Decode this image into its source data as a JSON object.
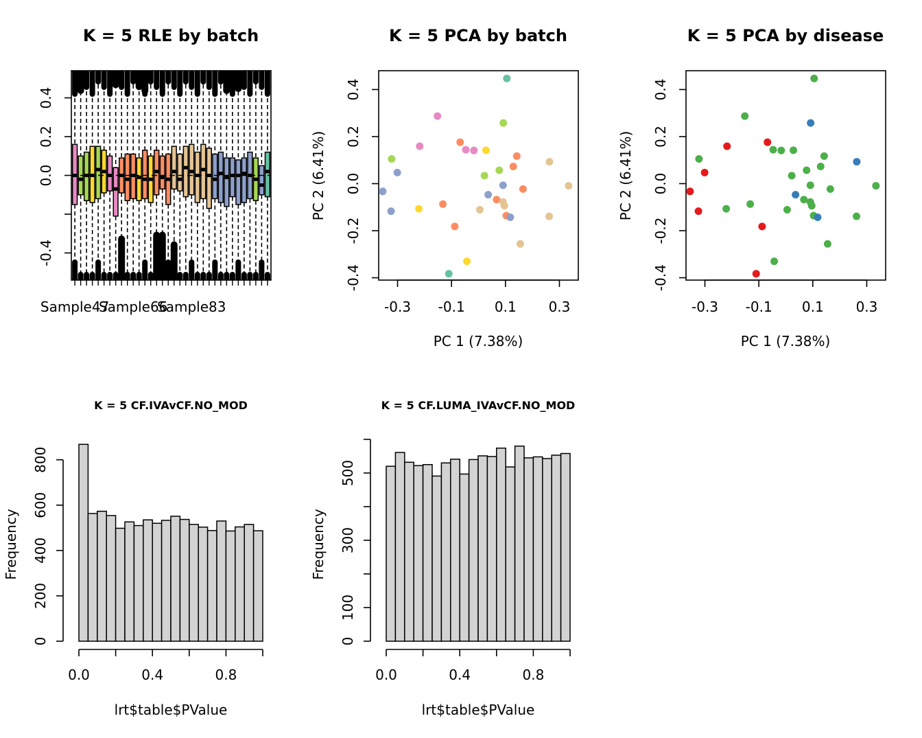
{
  "colors": {
    "batch_palette": [
      "#E78AC3",
      "#A6D854",
      "#FFD92F",
      "#FC8D62",
      "#E5C494",
      "#8DA0CB",
      "#66C2A5"
    ],
    "disease_red": "#E41A1C",
    "disease_green": "#4DAF4A",
    "disease_blue": "#377EB8",
    "hist_fill": "#D3D3D3"
  },
  "chart_data": [
    {
      "type": "boxplot",
      "title": "K = 5 RLE by batch",
      "xlabel": "",
      "ylabel": "",
      "ylim": [
        -0.54,
        0.54
      ],
      "yticks": [
        -0.4,
        -0.2,
        0.0,
        0.2,
        0.4
      ],
      "ytick_labels": [
        "-0.4",
        "",
        "0.0",
        "0.2",
        "0.4"
      ],
      "xtick_labels": [
        "Sample47",
        "Sample66",
        "Sample83"
      ],
      "xtick_positions": [
        1,
        11,
        21
      ],
      "zero_line": true,
      "boxes": [
        {
          "batch": 0,
          "median": 0.0,
          "q1": -0.15,
          "q3": 0.16
        },
        {
          "batch": 1,
          "median": -0.02,
          "q1": -0.1,
          "q3": 0.1
        },
        {
          "batch": 1,
          "median": 0.0,
          "q1": -0.13,
          "q3": 0.12
        },
        {
          "batch": 2,
          "median": 0.0,
          "q1": -0.14,
          "q3": 0.15
        },
        {
          "batch": 1,
          "median": 0.03,
          "q1": -0.12,
          "q3": 0.15
        },
        {
          "batch": 2,
          "median": 0.02,
          "q1": -0.09,
          "q3": 0.13
        },
        {
          "batch": 0,
          "median": 0.0,
          "q1": -0.08,
          "q3": 0.1
        },
        {
          "batch": 0,
          "median": -0.07,
          "q1": -0.21,
          "q3": 0.04
        },
        {
          "batch": 3,
          "median": 0.0,
          "q1": -0.09,
          "q3": 0.09
        },
        {
          "batch": 3,
          "median": -0.02,
          "q1": -0.13,
          "q3": 0.11
        },
        {
          "batch": 3,
          "median": 0.0,
          "q1": -0.12,
          "q3": 0.11
        },
        {
          "batch": 2,
          "median": -0.01,
          "q1": -0.13,
          "q3": 0.09
        },
        {
          "batch": 3,
          "median": -0.02,
          "q1": -0.12,
          "q3": 0.13
        },
        {
          "batch": 2,
          "median": -0.02,
          "q1": -0.14,
          "q3": 0.1
        },
        {
          "batch": 3,
          "median": 0.02,
          "q1": -0.1,
          "q3": 0.13
        },
        {
          "batch": 3,
          "median": -0.01,
          "q1": -0.07,
          "q3": 0.1
        },
        {
          "batch": 3,
          "median": -0.02,
          "q1": -0.15,
          "q3": 0.11
        },
        {
          "batch": 4,
          "median": 0.02,
          "q1": -0.07,
          "q3": 0.15
        },
        {
          "batch": 4,
          "median": -0.02,
          "q1": -0.08,
          "q3": 0.11
        },
        {
          "batch": 4,
          "median": 0.04,
          "q1": -0.11,
          "q3": 0.15
        },
        {
          "batch": 4,
          "median": 0.02,
          "q1": -0.1,
          "q3": 0.16
        },
        {
          "batch": 4,
          "median": 0.0,
          "q1": -0.14,
          "q3": 0.12
        },
        {
          "batch": 4,
          "median": 0.03,
          "q1": -0.12,
          "q3": 0.16
        },
        {
          "batch": 4,
          "median": 0.0,
          "q1": -0.17,
          "q3": 0.14
        },
        {
          "batch": 5,
          "median": -0.02,
          "q1": -0.12,
          "q3": 0.11
        },
        {
          "batch": 5,
          "median": 0.01,
          "q1": -0.14,
          "q3": 0.12
        },
        {
          "batch": 5,
          "median": -0.01,
          "q1": -0.16,
          "q3": 0.09
        },
        {
          "batch": 5,
          "median": 0.0,
          "q1": -0.11,
          "q3": 0.09
        },
        {
          "batch": 5,
          "median": 0.0,
          "q1": -0.15,
          "q3": 0.08
        },
        {
          "batch": 5,
          "median": 0.01,
          "q1": -0.14,
          "q3": 0.09
        },
        {
          "batch": 5,
          "median": 0.0,
          "q1": -0.12,
          "q3": 0.12
        },
        {
          "batch": 1,
          "median": -0.02,
          "q1": -0.13,
          "q3": 0.09
        },
        {
          "batch": 5,
          "median": -0.05,
          "q1": -0.1,
          "q3": 0.05
        },
        {
          "batch": 6,
          "median": 0.02,
          "q1": -0.11,
          "q3": 0.12
        }
      ]
    },
    {
      "type": "scatter",
      "title": "K = 5 PCA by batch",
      "xlabel": "PC 1 (7.38%)",
      "ylabel": "PC 2 (6.41%)",
      "xlim": [
        -0.37,
        0.37
      ],
      "ylim": [
        -0.41,
        0.48
      ],
      "xticks": [
        -0.3,
        -0.1,
        0.1,
        0.3
      ],
      "xtick_labels": [
        "-0.3",
        "-0.1",
        "0.1",
        "0.3"
      ],
      "yticks": [
        -0.4,
        -0.2,
        0.0,
        0.2,
        0.4
      ],
      "ytick_labels": [
        "-0.4",
        "-0.2",
        "0.0",
        "0.2",
        "0.4"
      ],
      "points": [
        {
          "x": 0.105,
          "y": 0.447,
          "batch": 6
        },
        {
          "x": 0.092,
          "y": 0.258,
          "batch": 1
        },
        {
          "x": -0.152,
          "y": 0.287,
          "batch": 0
        },
        {
          "x": -0.068,
          "y": 0.176,
          "batch": 3
        },
        {
          "x": -0.047,
          "y": 0.144,
          "batch": 0
        },
        {
          "x": -0.017,
          "y": 0.141,
          "batch": 0
        },
        {
          "x": 0.028,
          "y": 0.142,
          "batch": 2
        },
        {
          "x": -0.218,
          "y": 0.159,
          "batch": 0
        },
        {
          "x": -0.322,
          "y": 0.105,
          "batch": 1
        },
        {
          "x": 0.142,
          "y": 0.117,
          "batch": 3
        },
        {
          "x": 0.263,
          "y": 0.093,
          "batch": 4
        },
        {
          "x": 0.129,
          "y": 0.073,
          "batch": 3
        },
        {
          "x": 0.077,
          "y": 0.057,
          "batch": 1
        },
        {
          "x": -0.301,
          "y": 0.047,
          "batch": 5
        },
        {
          "x": 0.022,
          "y": 0.034,
          "batch": 1
        },
        {
          "x": 0.091,
          "y": -0.007,
          "batch": 5
        },
        {
          "x": 0.165,
          "y": -0.023,
          "batch": 3
        },
        {
          "x": 0.334,
          "y": -0.009,
          "batch": 4
        },
        {
          "x": -0.355,
          "y": -0.033,
          "batch": 5
        },
        {
          "x": 0.036,
          "y": -0.047,
          "batch": 5
        },
        {
          "x": 0.067,
          "y": -0.068,
          "batch": 3
        },
        {
          "x": -0.132,
          "y": -0.087,
          "batch": 3
        },
        {
          "x": 0.091,
          "y": -0.078,
          "batch": 4
        },
        {
          "x": 0.096,
          "y": -0.094,
          "batch": 4
        },
        {
          "x": -0.221,
          "y": -0.107,
          "batch": 2
        },
        {
          "x": 0.005,
          "y": -0.111,
          "batch": 4
        },
        {
          "x": -0.324,
          "y": -0.117,
          "batch": 5
        },
        {
          "x": 0.103,
          "y": -0.136,
          "batch": 3
        },
        {
          "x": 0.118,
          "y": -0.143,
          "batch": 5
        },
        {
          "x": 0.262,
          "y": -0.139,
          "batch": 4
        },
        {
          "x": -0.088,
          "y": -0.182,
          "batch": 3
        },
        {
          "x": 0.155,
          "y": -0.256,
          "batch": 4
        },
        {
          "x": -0.043,
          "y": -0.33,
          "batch": 2
        },
        {
          "x": -0.11,
          "y": -0.383,
          "batch": 6
        }
      ]
    },
    {
      "type": "scatter",
      "title": "K = 5 PCA by disease",
      "xlabel": "PC 1 (7.38%)",
      "ylabel": "PC 2 (6.41%)",
      "xlim": [
        -0.37,
        0.37
      ],
      "ylim": [
        -0.41,
        0.48
      ],
      "xticks": [
        -0.3,
        -0.1,
        0.1,
        0.3
      ],
      "xtick_labels": [
        "-0.3",
        "-0.1",
        "0.1",
        "0.3"
      ],
      "yticks": [
        -0.4,
        -0.2,
        0.0,
        0.2,
        0.4
      ],
      "ytick_labels": [
        "-0.4",
        "-0.2",
        "0.0",
        "0.2",
        "0.4"
      ],
      "points": [
        {
          "x": 0.105,
          "y": 0.447,
          "group": "green"
        },
        {
          "x": 0.092,
          "y": 0.258,
          "group": "blue"
        },
        {
          "x": -0.152,
          "y": 0.287,
          "group": "green"
        },
        {
          "x": -0.068,
          "y": 0.176,
          "group": "red"
        },
        {
          "x": -0.047,
          "y": 0.144,
          "group": "green"
        },
        {
          "x": -0.017,
          "y": 0.141,
          "group": "green"
        },
        {
          "x": 0.028,
          "y": 0.142,
          "group": "green"
        },
        {
          "x": -0.218,
          "y": 0.159,
          "group": "red"
        },
        {
          "x": -0.322,
          "y": 0.105,
          "group": "green"
        },
        {
          "x": 0.142,
          "y": 0.117,
          "group": "green"
        },
        {
          "x": 0.263,
          "y": 0.093,
          "group": "blue"
        },
        {
          "x": 0.129,
          "y": 0.073,
          "group": "green"
        },
        {
          "x": 0.077,
          "y": 0.057,
          "group": "green"
        },
        {
          "x": -0.301,
          "y": 0.047,
          "group": "red"
        },
        {
          "x": 0.022,
          "y": 0.034,
          "group": "green"
        },
        {
          "x": 0.091,
          "y": -0.007,
          "group": "green"
        },
        {
          "x": 0.165,
          "y": -0.023,
          "group": "green"
        },
        {
          "x": 0.334,
          "y": -0.009,
          "group": "green"
        },
        {
          "x": -0.355,
          "y": -0.033,
          "group": "red"
        },
        {
          "x": 0.036,
          "y": -0.047,
          "group": "blue"
        },
        {
          "x": 0.067,
          "y": -0.068,
          "group": "green"
        },
        {
          "x": -0.132,
          "y": -0.087,
          "group": "green"
        },
        {
          "x": 0.091,
          "y": -0.078,
          "group": "green"
        },
        {
          "x": 0.096,
          "y": -0.094,
          "group": "green"
        },
        {
          "x": -0.221,
          "y": -0.107,
          "group": "green"
        },
        {
          "x": 0.005,
          "y": -0.111,
          "group": "green"
        },
        {
          "x": -0.324,
          "y": -0.117,
          "group": "red"
        },
        {
          "x": 0.103,
          "y": -0.136,
          "group": "green"
        },
        {
          "x": 0.118,
          "y": -0.143,
          "group": "blue"
        },
        {
          "x": 0.262,
          "y": -0.139,
          "group": "green"
        },
        {
          "x": -0.088,
          "y": -0.182,
          "group": "red"
        },
        {
          "x": 0.155,
          "y": -0.256,
          "group": "green"
        },
        {
          "x": -0.043,
          "y": -0.33,
          "group": "green"
        },
        {
          "x": -0.11,
          "y": -0.383,
          "group": "red"
        }
      ]
    },
    {
      "type": "bar",
      "title": "K = 5 CF.IVAvCF.NO_MOD",
      "xlabel": "lrt$table$PValue",
      "ylabel": "Frequency",
      "bin_edges": [
        0,
        0.05,
        0.1,
        0.15,
        0.2,
        0.25,
        0.3,
        0.35,
        0.4,
        0.45,
        0.5,
        0.55,
        0.6,
        0.65,
        0.7,
        0.75,
        0.8,
        0.85,
        0.9,
        0.95,
        1.0
      ],
      "values": [
        868,
        563,
        573,
        554,
        498,
        526,
        510,
        535,
        520,
        533,
        551,
        537,
        515,
        503,
        488,
        530,
        486,
        504,
        515,
        487
      ],
      "ylim": [
        0,
        890
      ],
      "yticks": [
        0,
        200,
        400,
        600,
        800
      ],
      "ytick_labels": [
        "0",
        "200",
        "400",
        "600",
        "800"
      ],
      "xticks": [
        0,
        0.2,
        0.4,
        0.6,
        0.8,
        1.0
      ],
      "xtick_labels": [
        "0.0",
        "",
        "0.4",
        "",
        "0.8",
        ""
      ]
    },
    {
      "type": "bar",
      "title": "K = 5 CF.LUMA_IVAvCF.NO_MOD",
      "xlabel": "lrt$table$PValue",
      "ylabel": "Frequency",
      "bin_edges": [
        0,
        0.05,
        0.1,
        0.15,
        0.2,
        0.25,
        0.3,
        0.35,
        0.4,
        0.45,
        0.5,
        0.55,
        0.6,
        0.65,
        0.7,
        0.75,
        0.8,
        0.85,
        0.9,
        0.95,
        1.0
      ],
      "values": [
        520,
        561,
        532,
        522,
        525,
        491,
        530,
        541,
        497,
        540,
        551,
        549,
        574,
        518,
        580,
        545,
        548,
        543,
        553,
        558
      ],
      "ylim": [
        0,
        600
      ],
      "yticks": [
        0,
        100,
        200,
        300,
        400,
        500,
        600
      ],
      "ytick_labels": [
        "0",
        "100",
        "",
        "300",
        "",
        "500",
        ""
      ],
      "xticks": [
        0,
        0.2,
        0.4,
        0.6,
        0.8,
        1.0
      ],
      "xtick_labels": [
        "0.0",
        "",
        "0.4",
        "",
        "0.8",
        ""
      ]
    }
  ]
}
